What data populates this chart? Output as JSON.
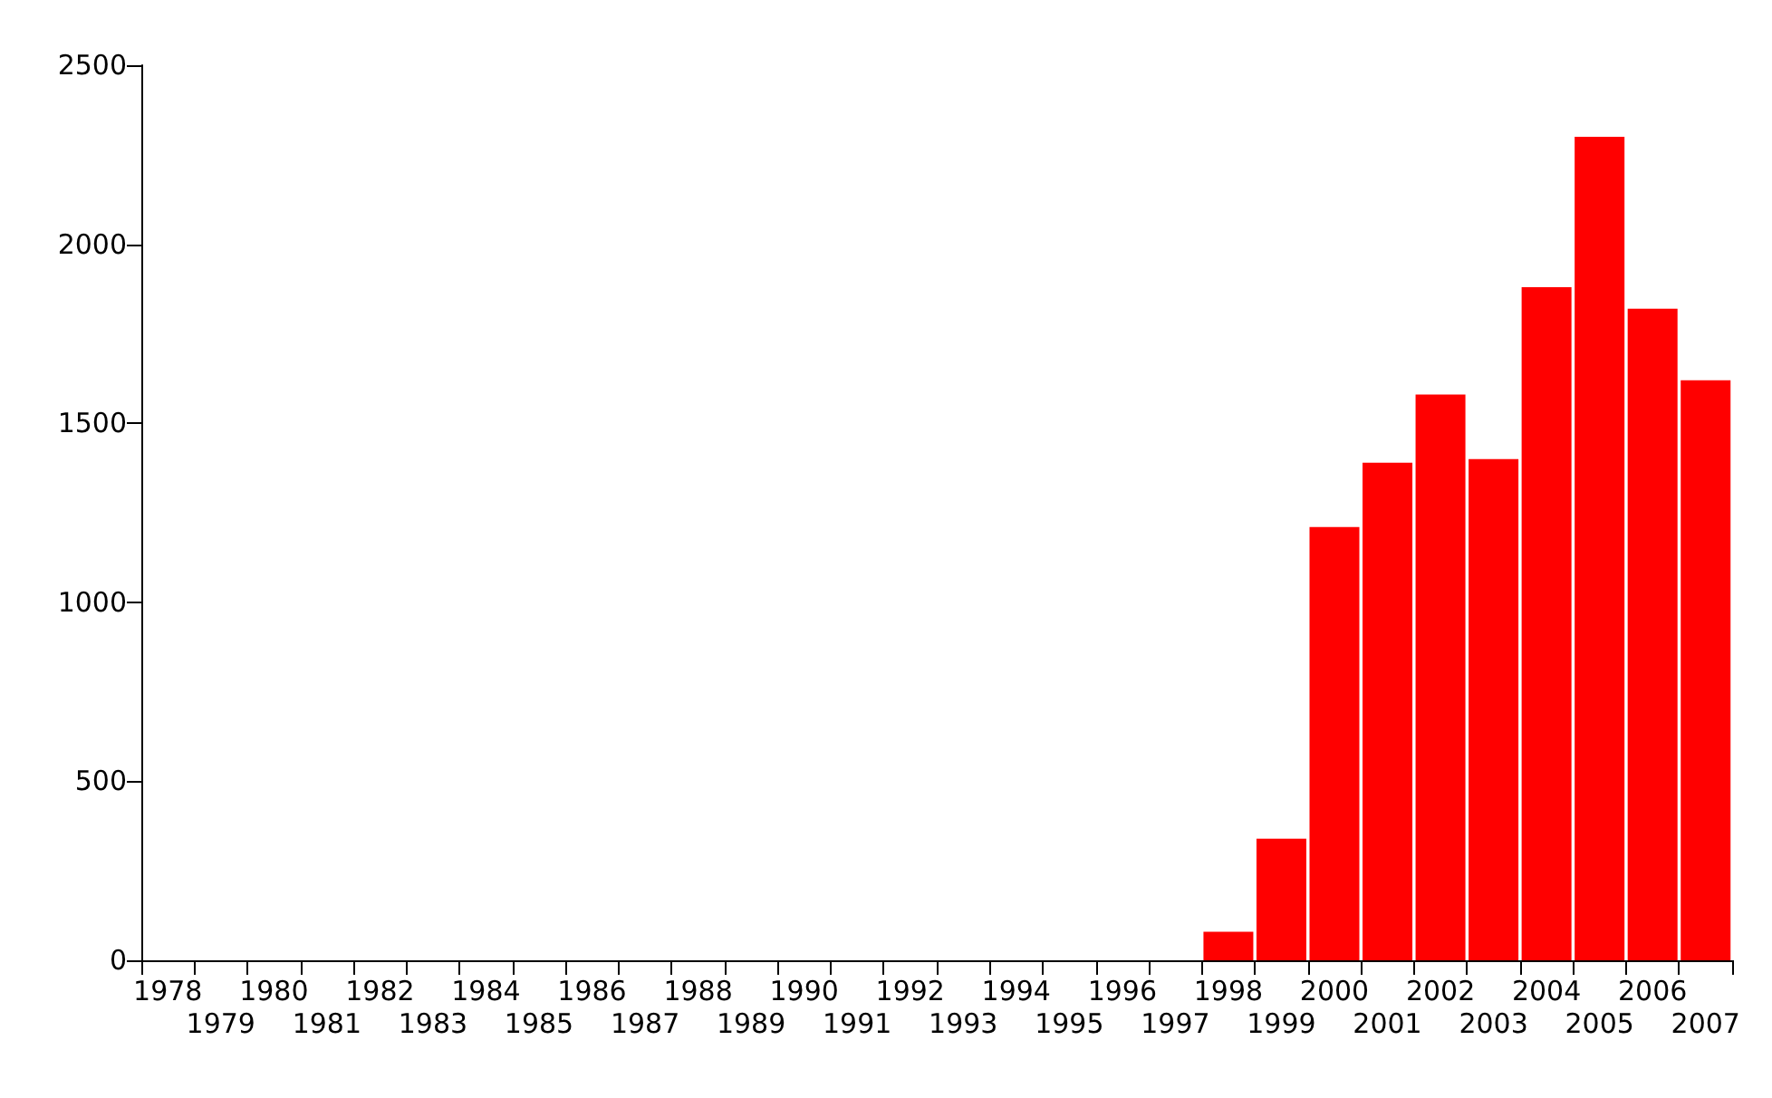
{
  "chart_data": {
    "type": "bar",
    "categories": [
      "1978",
      "1979",
      "1980",
      "1981",
      "1982",
      "1983",
      "1984",
      "1985",
      "1986",
      "1987",
      "1988",
      "1989",
      "1990",
      "1991",
      "1992",
      "1993",
      "1994",
      "1995",
      "1996",
      "1997",
      "1998",
      "1999",
      "2000",
      "2001",
      "2002",
      "2003",
      "2004",
      "2005",
      "2006",
      "2007"
    ],
    "values": [
      0,
      0,
      0,
      0,
      0,
      0,
      0,
      0,
      0,
      0,
      0,
      0,
      0,
      0,
      0,
      0,
      0,
      0,
      0,
      0,
      80,
      340,
      1210,
      1390,
      1580,
      1400,
      1880,
      2300,
      1820,
      1620
    ],
    "color": "#ff0000",
    "ylim": [
      0,
      2500
    ],
    "yticks": [
      0,
      500,
      1000,
      1500,
      2000,
      2500
    ],
    "grid": false
  }
}
